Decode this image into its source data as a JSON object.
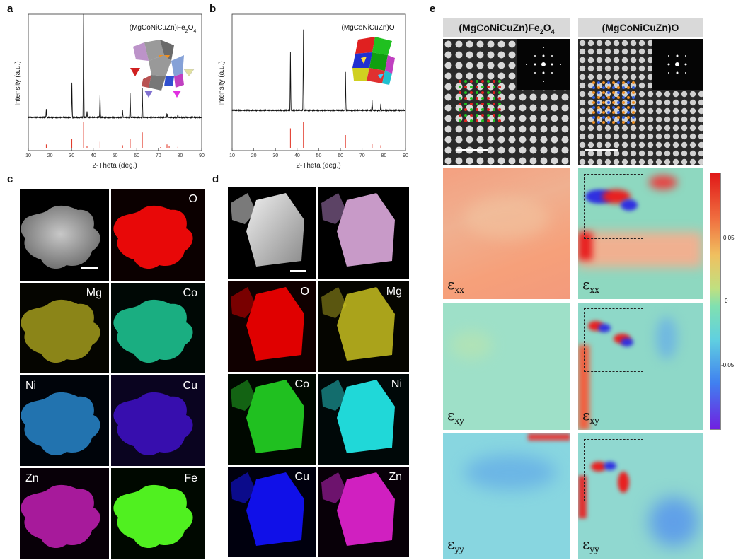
{
  "panels": {
    "a": {
      "label": "a",
      "compound": "(MgCoNiCuZn)Fe2O4",
      "ylabel": "Intensity (a.u.)",
      "xlabel": "2-Theta (deg.)"
    },
    "b": {
      "label": "b",
      "compound": "(MgCoNiCuZn)O",
      "ylabel": "Intensity (a.u.)",
      "xlabel": "2-Theta (deg.)"
    },
    "c": {
      "label": "c",
      "maps": [
        "O",
        "Mg",
        "Co",
        "Ni",
        "Cu",
        "Zn",
        "Fe"
      ]
    },
    "d": {
      "label": "d",
      "maps": [
        "O",
        "Mg",
        "Co",
        "Ni",
        "Cu",
        "Zn"
      ]
    },
    "e": {
      "label": "e",
      "col1": "(MgCoNiCuZn)Fe",
      "col1_sub": "2",
      "col1_tail": "O",
      "col1_sub2": "4",
      "col2": "(MgCoNiCuZn)O",
      "strain_labels": [
        "xx",
        "xy",
        "yy"
      ],
      "strain_symbol": "ε",
      "colorbar_ticks": [
        "0.05",
        "0",
        "-0.05"
      ]
    }
  },
  "chart_data": [
    {
      "type": "line",
      "title": "(MgCoNiCuZn)Fe2O4",
      "xlabel": "2-Theta (deg.)",
      "ylabel": "Intensity (a.u.)",
      "xlim": [
        10,
        90
      ],
      "xticks": [
        10,
        20,
        30,
        40,
        50,
        60,
        70,
        80,
        90
      ],
      "peaks_x": [
        18.3,
        30.1,
        35.5,
        37.1,
        43.1,
        53.5,
        57.0,
        62.6,
        74.0,
        79.0
      ],
      "peaks_rel_intensity": [
        0.08,
        0.33,
        1.0,
        0.06,
        0.22,
        0.07,
        0.24,
        0.28,
        0.04,
        0.03
      ],
      "reference_x": [
        18.3,
        30.1,
        35.5,
        37.1,
        43.1,
        53.5,
        57.0,
        62.6,
        71.0,
        74.0,
        75.0,
        79.0
      ],
      "reference_rel": [
        0.15,
        0.35,
        1.0,
        0.1,
        0.25,
        0.12,
        0.35,
        0.6,
        0.05,
        0.15,
        0.1,
        0.06
      ]
    },
    {
      "type": "line",
      "title": "(MgCoNiCuZn)O",
      "xlabel": "2-Theta (deg.)",
      "ylabel": "Intensity (a.u.)",
      "xlim": [
        10,
        90
      ],
      "xticks": [
        10,
        20,
        30,
        40,
        50,
        60,
        70,
        80,
        90
      ],
      "peaks_x": [
        36.9,
        42.9,
        62.3,
        74.6,
        78.6
      ],
      "peaks_rel_intensity": [
        0.72,
        1.0,
        0.47,
        0.12,
        0.08
      ],
      "reference_x": [
        36.9,
        42.9,
        62.3,
        74.6,
        78.6
      ],
      "reference_rel": [
        0.75,
        1.0,
        0.5,
        0.18,
        0.12
      ]
    }
  ],
  "colors": {
    "O": "#e00000",
    "Mg": "#c8c020",
    "Co_c": "#20d8a0",
    "Ni_c": "#2a90d8",
    "Cu_c": "#4010c8",
    "Zn": "#d020c0",
    "Fe": "#50f020",
    "Co_d": "#20c020",
    "Ni_d": "#20d8d8",
    "Cu_d": "#1010e8",
    "reference": "#e03020"
  }
}
